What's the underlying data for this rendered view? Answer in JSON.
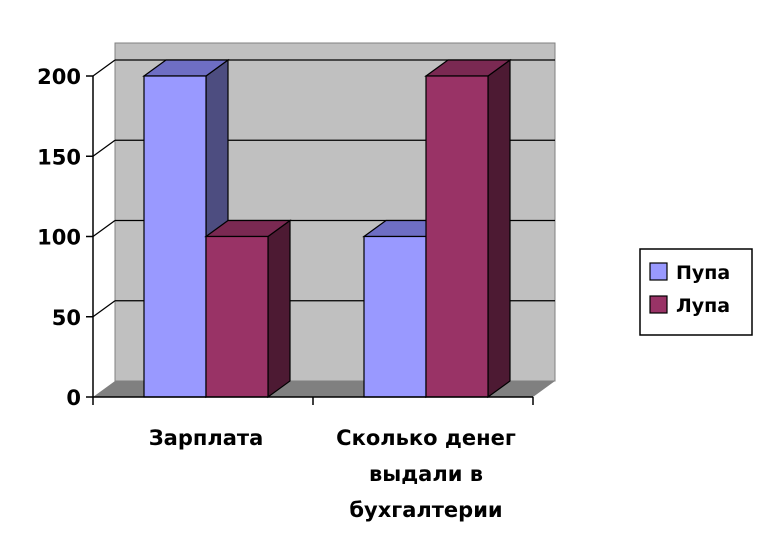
{
  "chart_data": {
    "type": "bar",
    "categories": [
      "Зарплата",
      "Сколько денег выдали в бухгалтерии"
    ],
    "category_label_lines": [
      [
        "Зарплата"
      ],
      [
        "Сколько денег",
        "выдали в",
        "бухгалтерии"
      ]
    ],
    "series": [
      {
        "name": "Пупа",
        "values": [
          200,
          100
        ],
        "color": "#9999ff",
        "side_color": "#4d4d80",
        "top_color": "#6e6ec4"
      },
      {
        "name": "Лупа",
        "values": [
          100,
          200
        ],
        "color": "#993366",
        "side_color": "#4d1a33",
        "top_color": "#7a2952"
      }
    ],
    "yticks": [
      "0",
      "50",
      "100",
      "150",
      "200"
    ],
    "ylim": [
      0,
      200
    ],
    "grid": true,
    "wall_color": "#c0c0c0",
    "floor_color": "#808080",
    "legend_position": "right"
  }
}
